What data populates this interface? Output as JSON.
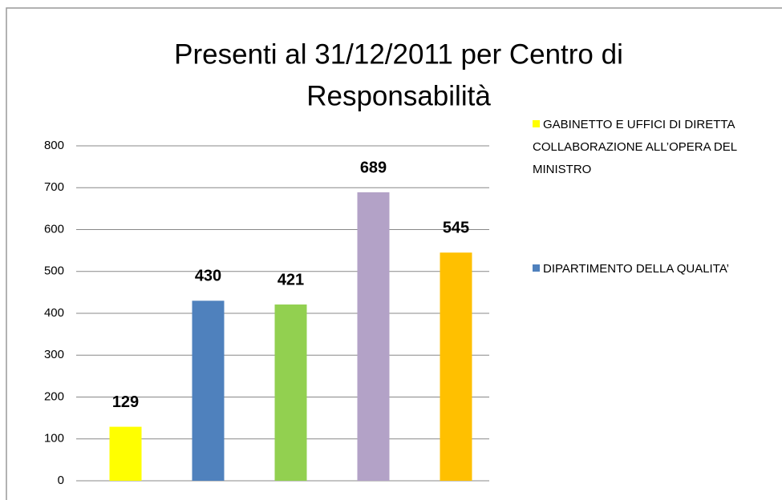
{
  "chart_data": {
    "type": "bar",
    "title": [
      "Presenti al 31/12/2011  per Centro di",
      "Responsabilità"
    ],
    "series": [
      {
        "name": "GABINETTO E UFFICI DI DIRETTA COLLABORAZIONE ALL’OPERA DEL MINISTRO",
        "color": "#ffff00",
        "values": [
          129
        ]
      },
      {
        "name": "DIPARTIMENTO DELLA QUALITA’",
        "color": "#4f81bd",
        "values": [
          430
        ]
      },
      {
        "color": "#92d050",
        "values": [
          421
        ]
      },
      {
        "color": "#b3a2c7",
        "values": [
          689
        ]
      },
      {
        "color": "#ffc000",
        "values": [
          545
        ]
      }
    ],
    "ylim": [
      0,
      800
    ],
    "yticks": [
      0,
      100,
      200,
      300,
      400,
      500,
      600,
      700,
      800
    ],
    "grid": true
  }
}
